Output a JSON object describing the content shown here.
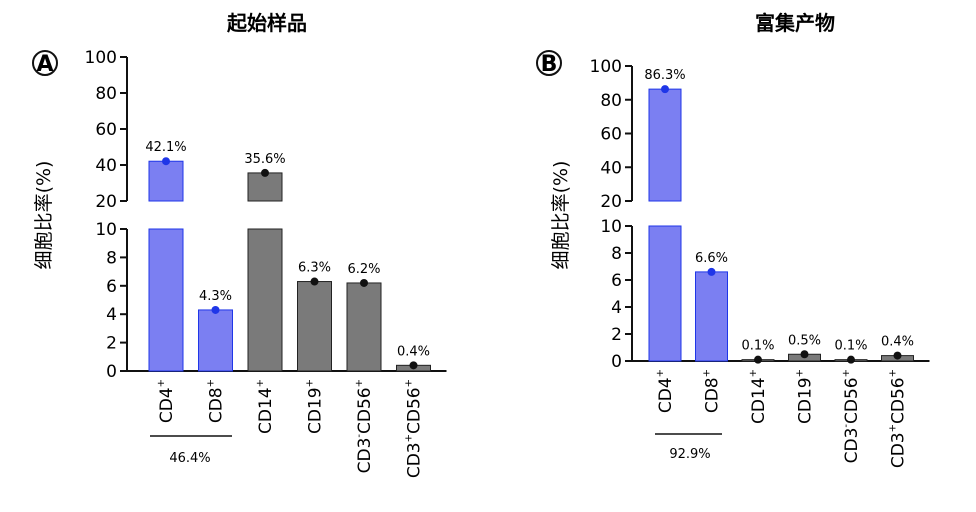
{
  "colors": {
    "cd_blue": "#7b7ff2",
    "cd_blue_dot": "#1f36e8",
    "gray": "#7a7a7a",
    "axis": "#111111"
  },
  "chart_data": [
    {
      "type": "bar",
      "panel": "A",
      "title": "起始样品",
      "ylabel": "细胞比率(%)",
      "axis_break": {
        "lower": [
          0,
          10
        ],
        "upper": [
          20,
          100
        ]
      },
      "lower_ticks": [
        "0",
        "2",
        "4",
        "6",
        "8",
        "10"
      ],
      "upper_ticks": [
        "20",
        "40",
        "60",
        "80",
        "100"
      ],
      "categories": [
        {
          "base": "CD4",
          "sup1": "+",
          "mid": "",
          "sup2": ""
        },
        {
          "base": "CD8",
          "sup1": "+",
          "mid": "",
          "sup2": ""
        },
        {
          "base": "CD14",
          "sup1": "+",
          "mid": "",
          "sup2": ""
        },
        {
          "base": "CD19",
          "sup1": "+",
          "mid": "",
          "sup2": ""
        },
        {
          "base": "CD3",
          "sup1": "-",
          "mid": "CD56",
          "sup2": "+"
        },
        {
          "base": "CD3",
          "sup1": "+",
          "mid": "CD56",
          "sup2": "+"
        }
      ],
      "values": [
        42.1,
        4.3,
        35.6,
        6.3,
        6.2,
        0.4
      ],
      "labels": [
        "42.1%",
        "4.3%",
        "35.6%",
        "6.3%",
        "6.2%",
        "0.4%"
      ],
      "bar_colors": [
        "blue",
        "blue",
        "gray",
        "gray",
        "gray",
        "gray"
      ],
      "sum_label": "46.4%"
    },
    {
      "type": "bar",
      "panel": "B",
      "title": "富集产物",
      "ylabel": "细胞比率(%)",
      "axis_break": {
        "lower": [
          0,
          10
        ],
        "upper": [
          20,
          100
        ]
      },
      "lower_ticks": [
        "0",
        "2",
        "4",
        "6",
        "8",
        "10"
      ],
      "upper_ticks": [
        "20",
        "40",
        "60",
        "80",
        "100"
      ],
      "categories": [
        {
          "base": "CD4",
          "sup1": "+",
          "mid": "",
          "sup2": ""
        },
        {
          "base": "CD8",
          "sup1": "+",
          "mid": "",
          "sup2": ""
        },
        {
          "base": "CD14",
          "sup1": "+",
          "mid": "",
          "sup2": ""
        },
        {
          "base": "CD19",
          "sup1": "+",
          "mid": "",
          "sup2": ""
        },
        {
          "base": "CD3",
          "sup1": "-",
          "mid": "CD56",
          "sup2": "+"
        },
        {
          "base": "CD3",
          "sup1": "+",
          "mid": "CD56",
          "sup2": "+"
        }
      ],
      "values": [
        86.3,
        6.6,
        0.1,
        0.5,
        0.1,
        0.4
      ],
      "labels": [
        "86.3%",
        "6.6%",
        "0.1%",
        "0.5%",
        "0.1%",
        "0.4%"
      ],
      "bar_colors": [
        "blue",
        "blue",
        "gray",
        "gray",
        "gray",
        "gray"
      ],
      "sum_label": "92.9%"
    }
  ]
}
